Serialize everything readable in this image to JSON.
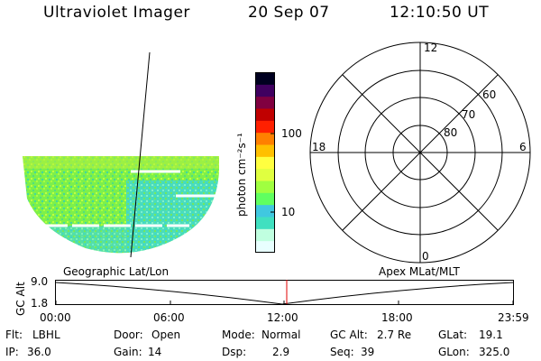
{
  "header": {
    "instrument": "Ultraviolet Imager",
    "date": "20 Sep 07",
    "time": "12:10:50 UT"
  },
  "colorbar": {
    "unit_label": "photon cm⁻²s⁻¹",
    "tick_100": "100",
    "tick_10": "10",
    "colors": [
      "#e8ffff",
      "#c0ffe0",
      "#40e0c0",
      "#40c8e0",
      "#60ff60",
      "#a0ff40",
      "#e0ff40",
      "#ffff40",
      "#ffc000",
      "#ff8000",
      "#ff2000",
      "#c00000",
      "#800040",
      "#400060",
      "#000020"
    ]
  },
  "geo_panel": {
    "label": "Geographic Lat/Lon"
  },
  "polar_panel": {
    "label": "Apex MLat/MLT",
    "mlt_12": "12",
    "mlt_18": "18",
    "mlt_6": "6",
    "mlt_0": "0",
    "lat_60": "60",
    "lat_70": "70",
    "lat_80": "80"
  },
  "altitude_plot": {
    "ylabel": "GC Alt",
    "ytick_top": "9.0",
    "ytick_bottom": "1.8",
    "xticks": [
      "00:00",
      "06:00",
      "12:00",
      "18:00",
      "23:59"
    ],
    "current_marker_time": "12:10:50"
  },
  "info": {
    "filter_label": "Flt:",
    "filter_value": "LBHL",
    "door_label": "Door:",
    "door_value": "Open",
    "mode_label": "Mode:",
    "mode_value": "Normal",
    "gcalt_label": "GC Alt:",
    "gcalt_value": "2.7 Re",
    "glat_label": "GLat:",
    "glat_value": "19.1",
    "ip_label": "IP:",
    "ip_value": "36.0",
    "gain_label": "Gain:",
    "gain_value": "14",
    "dsp_label": "Dsp:",
    "dsp_value": "2.9",
    "seq_label": "Seq:",
    "seq_value": "39",
    "glon_label": "GLon:",
    "glon_value": "325.0"
  }
}
